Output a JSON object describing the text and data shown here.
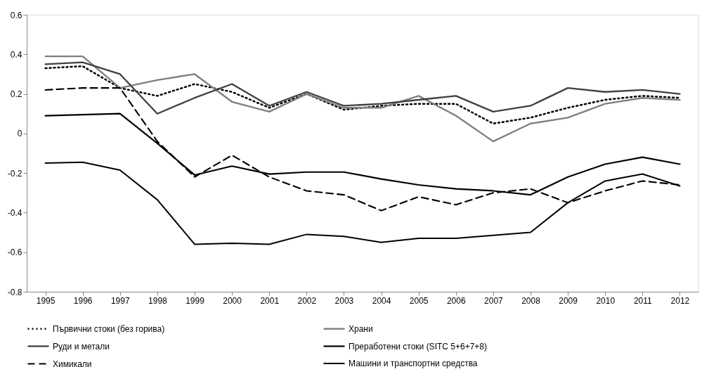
{
  "chart_data": {
    "type": "line",
    "categories": [
      "1995",
      "1996",
      "1997",
      "1998",
      "1999",
      "2000",
      "2001",
      "2002",
      "2003",
      "2004",
      "2005",
      "2006",
      "2007",
      "2008",
      "2009",
      "2010",
      "2011",
      "2012"
    ],
    "ylim": [
      -0.8,
      0.6
    ],
    "yticks": [
      -0.8,
      -0.6,
      -0.4,
      -0.2,
      0,
      0.2,
      0.4,
      0.6
    ],
    "grid": false,
    "legend": "bottom",
    "series": [
      {
        "name": "Първични стоки (без горива)",
        "color": "#000000",
        "line_style": "dotted",
        "values": [
          0.33,
          0.34,
          0.23,
          0.19,
          0.25,
          0.21,
          0.13,
          0.2,
          0.12,
          0.14,
          0.15,
          0.15,
          0.05,
          0.08,
          0.13,
          0.17,
          0.19,
          0.18
        ]
      },
      {
        "name": "Храни",
        "color": "#7f7f7f",
        "line_style": "solid",
        "values": [
          0.39,
          0.39,
          0.23,
          0.27,
          0.3,
          0.16,
          0.11,
          0.2,
          0.13,
          0.13,
          0.19,
          0.09,
          -0.04,
          0.05,
          0.08,
          0.15,
          0.18,
          0.17
        ]
      },
      {
        "name": "Руди и метали",
        "color": "#404040",
        "line_style": "solid",
        "values": [
          0.35,
          0.36,
          0.3,
          0.1,
          0.18,
          0.25,
          0.14,
          0.21,
          0.14,
          0.15,
          0.17,
          0.19,
          0.11,
          0.14,
          0.23,
          0.21,
          0.22,
          0.2
        ]
      },
      {
        "name": "Преработени стоки (SITC 5+6+7+8)",
        "color": "#000000",
        "line_style": "solid",
        "values": [
          0.09,
          0.095,
          0.1,
          -0.05,
          -0.21,
          -0.165,
          -0.205,
          -0.195,
          -0.195,
          -0.23,
          -0.26,
          -0.28,
          -0.29,
          -0.31,
          -0.22,
          -0.155,
          -0.12,
          -0.155
        ]
      },
      {
        "name": "Химикали",
        "color": "#000000",
        "line_style": "dashed",
        "values": [
          0.22,
          0.23,
          0.23,
          -0.04,
          -0.22,
          -0.11,
          -0.22,
          -0.29,
          -0.31,
          -0.39,
          -0.32,
          -0.36,
          -0.3,
          -0.28,
          -0.35,
          -0.29,
          -0.24,
          -0.26
        ]
      },
      {
        "name": "Машини и транспортни средства",
        "color": "#000000",
        "line_style": "solid",
        "values": [
          -0.15,
          -0.145,
          -0.185,
          -0.335,
          -0.56,
          -0.555,
          -0.56,
          -0.51,
          -0.52,
          -0.55,
          -0.53,
          -0.53,
          -0.515,
          -0.5,
          -0.35,
          -0.24,
          -0.205,
          -0.265
        ]
      }
    ]
  }
}
